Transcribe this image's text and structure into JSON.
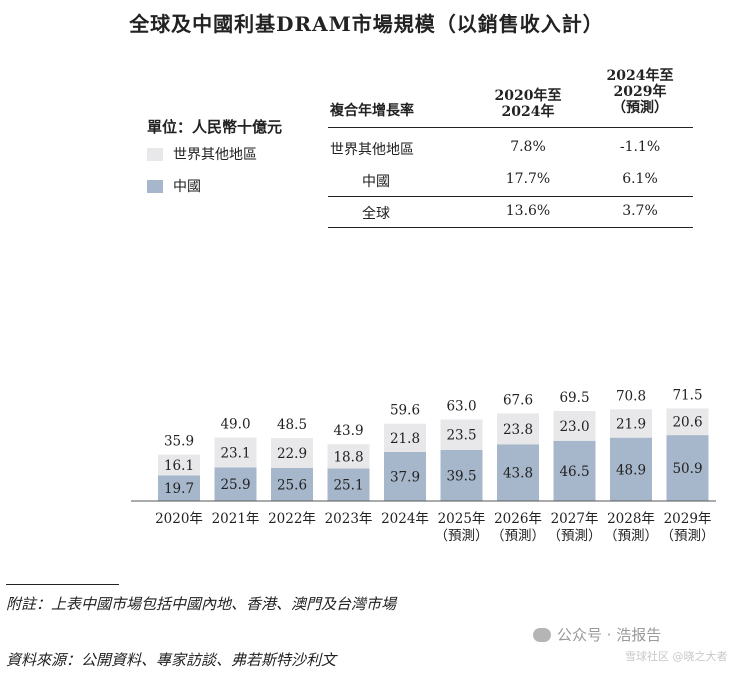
{
  "title": "全球及中國利基DRAM市場規模（以銷售收入計）",
  "unit_label": "單位：人民幣十億元",
  "legend": [
    {
      "label": "世界其他地區",
      "color": "#e8e8ea"
    },
    {
      "label": "中國",
      "color": "#a7b7cb"
    }
  ],
  "cagr_table": {
    "header_label": "複合年增長率",
    "col1_lines": [
      "2020年至",
      "2024年"
    ],
    "col2_lines": [
      "2024年至",
      "2029年",
      "（預測）"
    ],
    "rows": [
      {
        "label": "世界其他地區",
        "v1": "7.8%",
        "v2": "-1.1%"
      },
      {
        "label": "中國",
        "v1": "17.7%",
        "v2": "6.1%"
      },
      {
        "label": "全球",
        "v1": "13.6%",
        "v2": "3.7%"
      }
    ]
  },
  "chart_data": {
    "type": "bar",
    "stacked": true,
    "categories": [
      [
        "2020年"
      ],
      [
        "2021年"
      ],
      [
        "2022年"
      ],
      [
        "2023年"
      ],
      [
        "2024年"
      ],
      [
        "2025年",
        "（預測）"
      ],
      [
        "2026年",
        "（預測）"
      ],
      [
        "2027年",
        "（預測）"
      ],
      [
        "2028年",
        "（預測）"
      ],
      [
        "2029年",
        "（預測）"
      ]
    ],
    "series": [
      {
        "name": "中國",
        "values": [
          19.7,
          25.9,
          25.6,
          25.1,
          37.9,
          39.5,
          43.8,
          46.5,
          48.9,
          50.9
        ],
        "labels": [
          "19.7",
          "25.9",
          "25.6",
          "25.1",
          "37.9",
          "39.5",
          "43.8",
          "46.5",
          "48.9",
          "50.9"
        ]
      },
      {
        "name": "世界其他地區",
        "values": [
          16.1,
          23.1,
          22.9,
          18.8,
          21.8,
          23.5,
          23.8,
          23.0,
          21.9,
          20.6
        ],
        "labels": [
          "16.1",
          "23.1",
          "22.9",
          "18.8",
          "21.8",
          "23.5",
          "23.8",
          "23.0",
          "21.9",
          "20.6"
        ]
      }
    ],
    "totals": [
      35.9,
      49.0,
      48.5,
      43.9,
      59.6,
      63.0,
      67.6,
      69.5,
      70.8,
      71.5
    ],
    "total_labels": [
      "35.9",
      "49.0",
      "48.5",
      "43.9",
      "59.6",
      "63.0",
      "67.6",
      "69.5",
      "70.8",
      "71.5"
    ],
    "colors": {
      "china": "#a7b7cb",
      "world": "#e8e8ea"
    },
    "ylim": [
      0,
      75
    ],
    "unit": "人民幣十億元"
  },
  "note": "附註：上表中國市場包括中國內地、香港、澳門及台灣市場",
  "source": "資料來源：公開資料、專家訪談、弗若斯特沙利文",
  "watermark": "公众号 · 浩报告",
  "watermark_overlay": "雪球社区 @晓之大者"
}
